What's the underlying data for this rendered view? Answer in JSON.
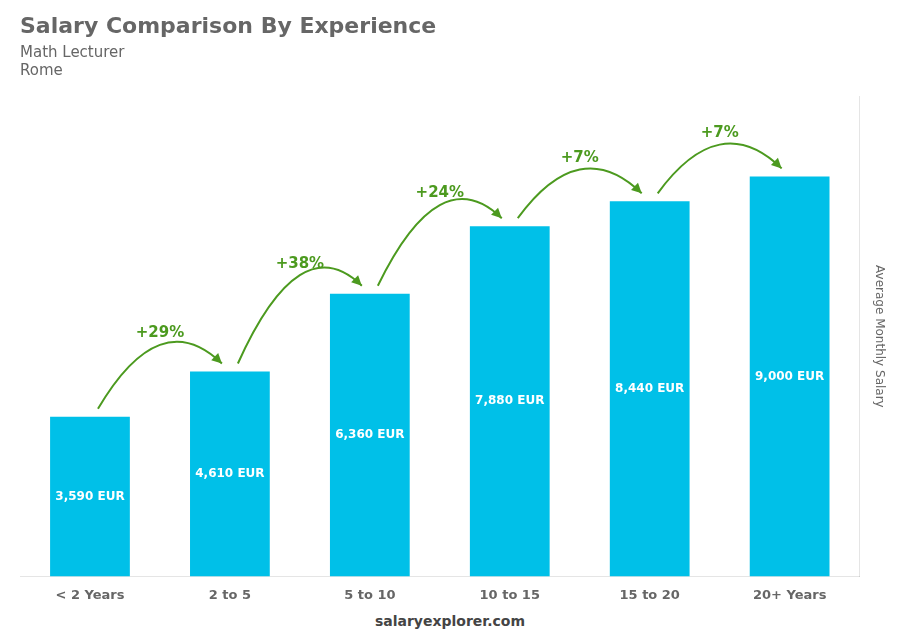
{
  "chart_data": {
    "type": "bar",
    "title": "Salary Comparison By Experience",
    "subtitle": [
      "Math Lecturer",
      "Rome"
    ],
    "categories": [
      "< 2 Years",
      "2 to 5",
      "5 to 10",
      "10 to 15",
      "15 to 20",
      "20+ Years"
    ],
    "values": [
      3590,
      4610,
      6360,
      7880,
      8440,
      9000
    ],
    "value_labels": [
      "3,590 EUR",
      "4,610 EUR",
      "6,360 EUR",
      "7,880 EUR",
      "8,440 EUR",
      "9,000 EUR"
    ],
    "data_labels": true,
    "color": "#00c0e8",
    "y_label": "Average Monthly Salary",
    "ylim": [
      0,
      10800
    ],
    "yticks": [],
    "tick_labels": "x",
    "grid": false,
    "annotations": [
      "+29%",
      "+38%",
      "+24%",
      "+7%",
      "+7%"
    ],
    "footer": "salaryexplorer.com"
  }
}
